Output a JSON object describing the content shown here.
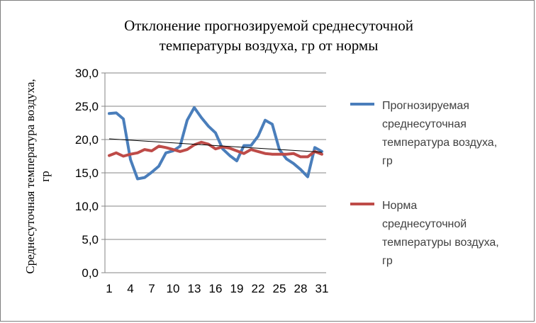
{
  "chart_data": {
    "type": "line",
    "title_lines": [
      "Отклонение прогнозируемой среднесуточной",
      "температуры воздуха, гр от нормы"
    ],
    "ylabel_lines": [
      "Среднесуточная температура воздуха,",
      "гр"
    ],
    "xlabel": "",
    "x": [
      1,
      2,
      3,
      4,
      5,
      6,
      7,
      8,
      9,
      10,
      11,
      12,
      13,
      14,
      15,
      16,
      17,
      18,
      19,
      20,
      21,
      22,
      23,
      24,
      25,
      26,
      27,
      28,
      29,
      30,
      31
    ],
    "x_tick_labels": [
      "1",
      "4",
      "7",
      "10",
      "13",
      "16",
      "19",
      "22",
      "25",
      "28",
      "31"
    ],
    "y_tick_labels": [
      "0,0",
      "5,0",
      "10,0",
      "15,0",
      "20,0",
      "25,0",
      "30,0"
    ],
    "ylim": [
      0,
      30
    ],
    "y_step": 5,
    "grid": "horizontal",
    "legend_position": "right",
    "series": [
      {
        "name": "Прогнозируемая среднесуточная температура воздуха, гр",
        "legend_lines": [
          "Прогнозируемая",
          "среднесуточная",
          "температура воздуха,",
          "гр"
        ],
        "color": "#4a7ebb",
        "values": [
          23.9,
          24.0,
          23.1,
          17.0,
          14.1,
          14.3,
          15.1,
          16.0,
          18.0,
          18.3,
          19.0,
          22.9,
          24.8,
          23.3,
          22.0,
          21.0,
          18.6,
          17.6,
          16.8,
          19.1,
          19.1,
          20.5,
          22.9,
          22.3,
          18.5,
          17.1,
          16.4,
          15.5,
          14.4,
          18.8,
          18.2
        ]
      },
      {
        "name": "Норма среднесуточной температуры воздуха, гр",
        "legend_lines": [
          "Норма",
          "среднесуточной",
          "температуры воздуха,",
          "гр"
        ],
        "color": "#be4b48",
        "values": [
          17.6,
          18.0,
          17.5,
          17.8,
          18.0,
          18.5,
          18.3,
          19.0,
          18.8,
          18.5,
          18.2,
          18.5,
          19.2,
          19.6,
          19.3,
          18.6,
          18.9,
          18.7,
          18.3,
          17.9,
          18.5,
          18.2,
          17.9,
          17.8,
          17.8,
          17.8,
          17.9,
          17.4,
          17.4,
          18.2,
          17.8
        ]
      }
    ],
    "trendline": {
      "color": "#000000",
      "start": [
        1,
        20.1
      ],
      "end": [
        31,
        18.1
      ]
    }
  }
}
